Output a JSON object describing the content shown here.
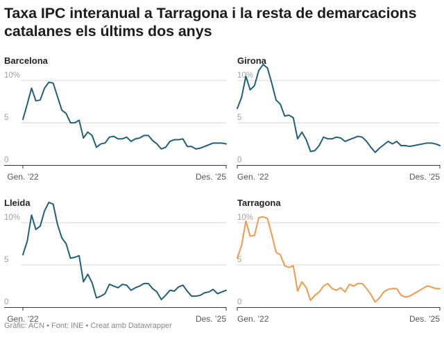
{
  "title": "Taxa IPC interanual a Tarragona i la resta de demarcacions catalanes els últims dos anys",
  "footer": "Gràfic: ACN • Font: INE • Creat amb Datawrapper",
  "colors": {
    "default": "#1f5f7a",
    "highlight": "#f2994a",
    "grid": "#d6d6d6",
    "axis": "#333333"
  },
  "chart_data": [
    {
      "type": "line",
      "title": "Barcelona",
      "color": "#1f5f7a",
      "ylim": [
        0,
        11
      ],
      "yticks": [
        0,
        5,
        10
      ],
      "ytick_labels": [
        "0",
        "5",
        "10%"
      ],
      "x_start_label": "Gen. ’22",
      "x_end_label": "Des. ’25",
      "values": [
        5.4,
        7.2,
        9.1,
        7.6,
        7.7,
        9.1,
        9.8,
        9.7,
        8.1,
        6.5,
        6.1,
        5.0,
        5.0,
        5.3,
        3.2,
        3.9,
        3.5,
        2.1,
        2.5,
        2.6,
        3.3,
        3.4,
        3.1,
        3.1,
        3.3,
        2.8,
        3.1,
        3.2,
        3.5,
        3.5,
        2.9,
        2.5,
        1.9,
        2.1,
        2.8,
        3.0,
        3.0,
        3.1,
        2.2,
        2.2,
        1.9,
        2.0,
        2.2,
        2.4,
        2.6,
        2.6,
        2.6,
        2.5
      ]
    },
    {
      "type": "line",
      "title": "Girona",
      "color": "#1f5f7a",
      "ylim": [
        0,
        11
      ],
      "yticks": [
        0,
        5,
        10
      ],
      "ytick_labels": [
        "0",
        "5",
        "10%"
      ],
      "x_start_label": "Gen. ’22",
      "x_end_label": "Des. ’25",
      "values": [
        6.7,
        8.0,
        10.5,
        8.9,
        9.4,
        11.2,
        11.9,
        11.5,
        9.7,
        7.7,
        7.2,
        5.8,
        5.9,
        5.6,
        3.1,
        3.9,
        3.0,
        1.6,
        1.7,
        2.3,
        3.3,
        3.1,
        3.1,
        3.3,
        3.2,
        2.8,
        3.0,
        3.2,
        3.4,
        3.3,
        2.8,
        2.1,
        1.5,
        2.0,
        2.4,
        2.8,
        2.5,
        2.8,
        2.3,
        2.3,
        2.2,
        2.3,
        2.4,
        2.5,
        2.6,
        2.6,
        2.5,
        2.3
      ]
    },
    {
      "type": "line",
      "title": "Lleida",
      "color": "#1f5f7a",
      "ylim": [
        0,
        11
      ],
      "yticks": [
        0,
        5,
        10
      ],
      "ytick_labels": [
        "0",
        "5",
        "10%"
      ],
      "x_start_label": "Gen. ’22",
      "x_end_label": "Des. ’25",
      "values": [
        6.2,
        7.8,
        10.9,
        9.2,
        9.6,
        11.4,
        12.4,
        12.2,
        9.8,
        8.2,
        7.5,
        5.8,
        5.9,
        6.1,
        3.0,
        3.9,
        2.9,
        1.1,
        1.3,
        1.6,
        2.7,
        2.5,
        2.3,
        2.7,
        2.6,
        2.0,
        2.3,
        2.5,
        2.8,
        2.8,
        2.2,
        1.8,
        0.9,
        1.4,
        2.0,
        1.9,
        2.4,
        2.6,
        1.9,
        1.3,
        1.3,
        1.4,
        1.7,
        1.8,
        2.1,
        1.6,
        1.8,
        2.0
      ]
    },
    {
      "type": "line",
      "title": "Tarragona",
      "color": "#f2994a",
      "ylim": [
        0,
        11
      ],
      "yticks": [
        0,
        5,
        10
      ],
      "ytick_labels": [
        "0",
        "5",
        "10%"
      ],
      "x_start_label": "Gen. ’22",
      "x_end_label": "Des. ’25",
      "values": [
        5.8,
        7.3,
        10.2,
        8.4,
        8.5,
        10.6,
        10.7,
        10.5,
        8.6,
        6.5,
        6.2,
        4.9,
        4.7,
        4.9,
        1.9,
        3.0,
        2.3,
        0.8,
        1.4,
        1.8,
        2.5,
        2.8,
        2.2,
        2.0,
        2.3,
        1.8,
        2.7,
        2.5,
        2.8,
        2.8,
        2.2,
        1.5,
        0.6,
        1.1,
        1.8,
        2.1,
        2.2,
        2.2,
        1.4,
        1.2,
        1.3,
        1.6,
        1.9,
        2.2,
        2.5,
        2.4,
        2.2,
        2.2
      ]
    }
  ]
}
